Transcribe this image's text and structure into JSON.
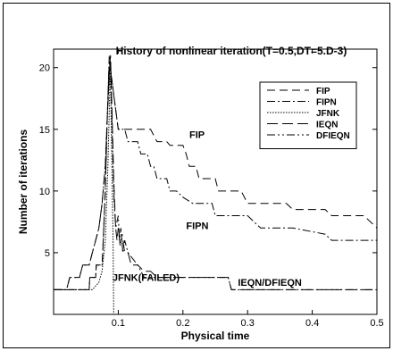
{
  "chart_data": {
    "type": "line",
    "title": "History of nonlinear iteration(T=0.5,DT=5.D-3)",
    "xlabel": "Physical time",
    "ylabel": "Number of iterations",
    "xlim": [
      0.0,
      0.5
    ],
    "ylim": [
      0,
      21.5
    ],
    "xticks": [
      0.1,
      0.2,
      0.3,
      0.4,
      0.5
    ],
    "xtick_labels": [
      "0.1",
      "0.2",
      "0.3",
      "0.4",
      "0.5"
    ],
    "yticks": [
      5,
      10,
      15,
      20
    ],
    "ytick_labels": [
      "5",
      "10",
      "15",
      "20"
    ],
    "grid": false,
    "legend_position": "upper-right",
    "series": [
      {
        "name": "FIP",
        "dash": "9,5",
        "x": [
          0.0,
          0.055,
          0.056,
          0.065,
          0.066,
          0.075,
          0.076,
          0.08,
          0.083,
          0.086,
          0.09,
          0.095,
          0.1,
          0.15,
          0.16,
          0.175,
          0.18,
          0.2,
          0.205,
          0.21,
          0.22,
          0.225,
          0.25,
          0.255,
          0.29,
          0.3,
          0.36,
          0.37,
          0.42,
          0.43,
          0.475,
          0.48,
          0.5
        ],
        "y": [
          2,
          2,
          3,
          3,
          4,
          4,
          5,
          10,
          16,
          20.5,
          19,
          17,
          15,
          15,
          14,
          14,
          13.7,
          13.7,
          13,
          12,
          12,
          11,
          11,
          10,
          10,
          9,
          9,
          8.5,
          8.5,
          8,
          8,
          8,
          7
        ]
      },
      {
        "name": "FIPN",
        "dash": "9,3,2,3",
        "x": [
          0.0,
          0.055,
          0.056,
          0.065,
          0.066,
          0.075,
          0.076,
          0.08,
          0.083,
          0.086,
          0.09,
          0.095,
          0.1,
          0.11,
          0.115,
          0.13,
          0.135,
          0.145,
          0.15,
          0.155,
          0.16,
          0.175,
          0.18,
          0.19,
          0.2,
          0.215,
          0.22,
          0.245,
          0.25,
          0.26,
          0.3,
          0.31,
          0.32,
          0.36,
          0.37,
          0.37,
          0.42,
          0.43,
          0.44,
          0.5
        ],
        "y": [
          2,
          2,
          3,
          3,
          4,
          4,
          5,
          10,
          16,
          21,
          19,
          17,
          15,
          15,
          14,
          14,
          13,
          13,
          12,
          12,
          11,
          11,
          10,
          10,
          9.5,
          9,
          9,
          9,
          8,
          8,
          8,
          7.5,
          7,
          7,
          7,
          7,
          6.5,
          6,
          6,
          6
        ]
      },
      {
        "name": "JFNK",
        "dash": "1.5,1.5",
        "x": [
          0.0,
          0.06,
          0.065,
          0.07,
          0.075,
          0.08,
          0.084,
          0.087,
          0.088,
          0.089,
          0.092,
          0.093,
          0.095
        ],
        "y": [
          2,
          2,
          2.3,
          2.6,
          3.5,
          6,
          12,
          18.5,
          20.5,
          16,
          6,
          0,
          0
        ]
      },
      {
        "name": "IEQN",
        "dash": "12,5",
        "x": [
          0.0,
          0.01,
          0.02,
          0.025,
          0.04,
          0.045,
          0.055,
          0.06,
          0.065,
          0.07,
          0.075,
          0.08,
          0.083,
          0.086,
          0.088,
          0.09,
          0.093,
          0.096,
          0.098,
          0.1,
          0.103,
          0.106,
          0.11,
          0.115,
          0.12,
          0.13,
          0.14,
          0.15,
          0.16,
          0.2,
          0.26,
          0.27,
          0.275,
          0.3,
          0.5
        ],
        "y": [
          2,
          2,
          2,
          3,
          3,
          4,
          4,
          5,
          6,
          7,
          9,
          12,
          16,
          19.5,
          21,
          17,
          11,
          7,
          6,
          7,
          5.5,
          6.5,
          5,
          5,
          4,
          4,
          3.5,
          3.5,
          3,
          3,
          3,
          3,
          2,
          2,
          2
        ]
      },
      {
        "name": "DFIEQN",
        "dash": "9,3,2,3,2,3",
        "x": [
          0.0,
          0.01,
          0.02,
          0.025,
          0.04,
          0.045,
          0.055,
          0.06,
          0.065,
          0.07,
          0.075,
          0.08,
          0.083,
          0.086,
          0.088,
          0.09,
          0.093,
          0.096,
          0.1,
          0.102,
          0.104,
          0.107,
          0.11,
          0.115,
          0.13,
          0.14,
          0.16,
          0.2,
          0.27,
          0.275,
          0.5
        ],
        "y": [
          2,
          2,
          2,
          3,
          3,
          4,
          4,
          5,
          6,
          7,
          9,
          12,
          16,
          19,
          20.5,
          16,
          10,
          7,
          8,
          6,
          7,
          5,
          6,
          5,
          4,
          3,
          3,
          3,
          3,
          2,
          2
        ]
      }
    ],
    "annotations": [
      {
        "text": "FIP",
        "x": 0.21,
        "y": 14.3
      },
      {
        "text": "FIPN",
        "x": 0.205,
        "y": 6.9
      },
      {
        "text": "JFNK(FAILED)",
        "x": 0.091,
        "y": 2.7
      },
      {
        "text": "IEQN/DFIEQN",
        "x": 0.285,
        "y": 2.3
      }
    ]
  }
}
